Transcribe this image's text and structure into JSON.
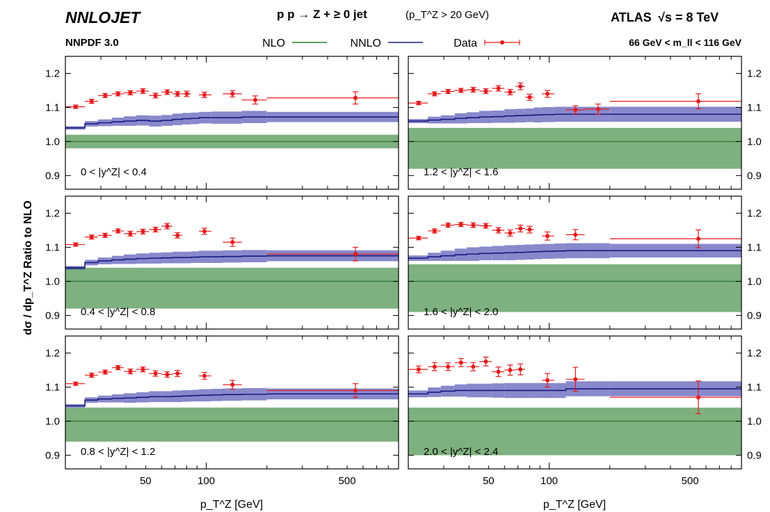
{
  "header": {
    "logo": "NNLOJET",
    "process": "p p → Z + ≥ 0 jet",
    "cut": "(p_T^Z > 20 GeV)",
    "pdf": "NNPDF 3.0",
    "experiment": "ATLAS",
    "energy": "√s = 8 TeV",
    "mass_window": "66 GeV < m_ll < 116 GeV"
  },
  "legend": [
    {
      "label": "NLO",
      "color": "#2e7d32"
    },
    {
      "label": "NNLO",
      "color": "#1a1a80"
    },
    {
      "label": "Data",
      "color": "#e41a1c"
    }
  ],
  "axes": {
    "ylabel": "dσ / dp_T^Z   Ratio to NLO",
    "xlabel": "p_T^Z [GeV]",
    "x_ticks": [
      50,
      100,
      500
    ],
    "y_ticks": [
      0.9,
      1.0,
      1.1,
      1.2
    ]
  },
  "colors": {
    "nlo_fill": "#7fb07f",
    "nlo_line": "#2e7d32",
    "nnlo_fill": "#8888cc",
    "nnlo_overlap": "#3d5a80",
    "nnlo_line": "#1a1a80",
    "data": "#e41a1c"
  },
  "chart_data": {
    "type": "line",
    "x_scale": "log",
    "xlim": [
      20,
      900
    ],
    "ylim": [
      0.86,
      1.25
    ],
    "bin_edges": [
      20,
      25,
      29,
      34,
      39,
      45,
      52,
      60,
      68,
      76,
      84,
      92,
      106,
      121,
      150,
      200,
      900
    ],
    "panels": [
      {
        "label": "0 < |y^Z| < 0.4",
        "nlo_band": [
          0.98,
          1.02
        ],
        "nnlo_center": [
          1.04,
          1.052,
          1.055,
          1.058,
          1.06,
          1.062,
          1.06,
          1.062,
          1.065,
          1.067,
          1.068,
          1.07,
          1.07,
          1.07,
          1.072,
          1.072
        ],
        "nnlo_half_width": [
          0.005,
          0.008,
          0.01,
          0.012,
          0.014,
          0.015,
          0.016,
          0.016,
          0.017,
          0.017,
          0.017,
          0.017,
          0.018,
          0.018,
          0.018,
          0.015
        ],
        "data": [
          {
            "x": 22.5,
            "y": 1.102,
            "err": 0.005,
            "xlo": 20,
            "xhi": 25
          },
          {
            "x": 27,
            "y": 1.118,
            "err": 0.006,
            "xlo": 25,
            "xhi": 29
          },
          {
            "x": 31.5,
            "y": 1.135,
            "err": 0.006,
            "xlo": 29,
            "xhi": 34
          },
          {
            "x": 36.5,
            "y": 1.14,
            "err": 0.006,
            "xlo": 34,
            "xhi": 39
          },
          {
            "x": 42,
            "y": 1.143,
            "err": 0.006,
            "xlo": 39,
            "xhi": 45
          },
          {
            "x": 48.5,
            "y": 1.148,
            "err": 0.007,
            "xlo": 45,
            "xhi": 52
          },
          {
            "x": 56,
            "y": 1.135,
            "err": 0.007,
            "xlo": 52,
            "xhi": 60
          },
          {
            "x": 64,
            "y": 1.145,
            "err": 0.007,
            "xlo": 60,
            "xhi": 68
          },
          {
            "x": 72,
            "y": 1.14,
            "err": 0.007,
            "xlo": 68,
            "xhi": 76
          },
          {
            "x": 80,
            "y": 1.14,
            "err": 0.008,
            "xlo": 76,
            "xhi": 84
          },
          {
            "x": 98,
            "y": 1.137,
            "err": 0.008,
            "xlo": 92,
            "xhi": 106
          },
          {
            "x": 135,
            "y": 1.14,
            "err": 0.009,
            "xlo": 121,
            "xhi": 150
          },
          {
            "x": 175,
            "y": 1.122,
            "err": 0.012,
            "xlo": 150,
            "xhi": 200
          },
          {
            "x": 550,
            "y": 1.128,
            "err": 0.018,
            "xlo": 200,
            "xhi": 900
          }
        ]
      },
      {
        "label": "1.2 < |y^Z| < 1.6",
        "nlo_band": [
          0.92,
          1.04
        ],
        "nnlo_center": [
          1.06,
          1.063,
          1.065,
          1.068,
          1.07,
          1.072,
          1.073,
          1.075,
          1.076,
          1.077,
          1.078,
          1.079,
          1.08,
          1.08,
          1.08,
          1.08
        ],
        "nnlo_half_width": [
          0.006,
          0.01,
          0.012,
          0.015,
          0.016,
          0.018,
          0.018,
          0.02,
          0.02,
          0.02,
          0.022,
          0.022,
          0.022,
          0.022,
          0.022,
          0.022
        ],
        "data": [
          {
            "x": 22.5,
            "y": 1.113,
            "err": 0.005,
            "xlo": 20,
            "xhi": 25
          },
          {
            "x": 27,
            "y": 1.14,
            "err": 0.006,
            "xlo": 25,
            "xhi": 29
          },
          {
            "x": 31.5,
            "y": 1.147,
            "err": 0.006,
            "xlo": 29,
            "xhi": 34
          },
          {
            "x": 36.5,
            "y": 1.15,
            "err": 0.006,
            "xlo": 34,
            "xhi": 39
          },
          {
            "x": 42,
            "y": 1.152,
            "err": 0.007,
            "xlo": 39,
            "xhi": 45
          },
          {
            "x": 48.5,
            "y": 1.148,
            "err": 0.007,
            "xlo": 45,
            "xhi": 52
          },
          {
            "x": 56,
            "y": 1.156,
            "err": 0.008,
            "xlo": 52,
            "xhi": 60
          },
          {
            "x": 64,
            "y": 1.145,
            "err": 0.008,
            "xlo": 60,
            "xhi": 68
          },
          {
            "x": 72,
            "y": 1.162,
            "err": 0.01,
            "xlo": 68,
            "xhi": 76
          },
          {
            "x": 80,
            "y": 1.13,
            "err": 0.009,
            "xlo": 76,
            "xhi": 84
          },
          {
            "x": 98,
            "y": 1.14,
            "err": 0.01,
            "xlo": 92,
            "xhi": 106
          },
          {
            "x": 135,
            "y": 1.093,
            "err": 0.012,
            "xlo": 121,
            "xhi": 150
          },
          {
            "x": 175,
            "y": 1.095,
            "err": 0.015,
            "xlo": 150,
            "xhi": 200
          },
          {
            "x": 550,
            "y": 1.118,
            "err": 0.022,
            "xlo": 200,
            "xhi": 900
          }
        ]
      },
      {
        "label": "0.4 < |y^Z| < 0.8",
        "nlo_band": [
          0.92,
          1.04
        ],
        "nnlo_center": [
          1.04,
          1.055,
          1.06,
          1.063,
          1.065,
          1.067,
          1.068,
          1.069,
          1.07,
          1.07,
          1.071,
          1.072,
          1.072,
          1.073,
          1.074,
          1.075
        ],
        "nnlo_half_width": [
          0.005,
          0.008,
          0.01,
          0.012,
          0.014,
          0.015,
          0.016,
          0.016,
          0.017,
          0.017,
          0.017,
          0.018,
          0.018,
          0.018,
          0.018,
          0.016
        ],
        "data": [
          {
            "x": 22.5,
            "y": 1.108,
            "err": 0.005,
            "xlo": 20,
            "xhi": 25
          },
          {
            "x": 27,
            "y": 1.13,
            "err": 0.006,
            "xlo": 25,
            "xhi": 29
          },
          {
            "x": 31.5,
            "y": 1.135,
            "err": 0.006,
            "xlo": 29,
            "xhi": 34
          },
          {
            "x": 36.5,
            "y": 1.148,
            "err": 0.006,
            "xlo": 34,
            "xhi": 39
          },
          {
            "x": 42,
            "y": 1.14,
            "err": 0.007,
            "xlo": 39,
            "xhi": 45
          },
          {
            "x": 48.5,
            "y": 1.146,
            "err": 0.007,
            "xlo": 45,
            "xhi": 52
          },
          {
            "x": 56,
            "y": 1.152,
            "err": 0.007,
            "xlo": 52,
            "xhi": 60
          },
          {
            "x": 64,
            "y": 1.162,
            "err": 0.008,
            "xlo": 60,
            "xhi": 68
          },
          {
            "x": 72,
            "y": 1.135,
            "err": 0.008,
            "xlo": 68,
            "xhi": 76
          },
          {
            "x": 98,
            "y": 1.147,
            "err": 0.009,
            "xlo": 92,
            "xhi": 106
          },
          {
            "x": 135,
            "y": 1.115,
            "err": 0.012,
            "xlo": 121,
            "xhi": 150
          },
          {
            "x": 550,
            "y": 1.08,
            "err": 0.02,
            "xlo": 200,
            "xhi": 900
          }
        ]
      },
      {
        "label": "1.6 < |y^Z| < 2.0",
        "nlo_band": [
          0.91,
          1.05
        ],
        "nnlo_center": [
          1.068,
          1.072,
          1.075,
          1.078,
          1.08,
          1.082,
          1.083,
          1.084,
          1.085,
          1.086,
          1.087,
          1.088,
          1.089,
          1.09,
          1.09,
          1.09
        ],
        "nnlo_half_width": [
          0.008,
          0.012,
          0.015,
          0.018,
          0.02,
          0.02,
          0.021,
          0.022,
          0.022,
          0.022,
          0.022,
          0.022,
          0.022,
          0.022,
          0.022,
          0.02
        ],
        "data": [
          {
            "x": 22.5,
            "y": 1.127,
            "err": 0.005,
            "xlo": 20,
            "xhi": 25
          },
          {
            "x": 27,
            "y": 1.148,
            "err": 0.006,
            "xlo": 25,
            "xhi": 29
          },
          {
            "x": 31.5,
            "y": 1.165,
            "err": 0.006,
            "xlo": 29,
            "xhi": 34
          },
          {
            "x": 36.5,
            "y": 1.167,
            "err": 0.006,
            "xlo": 34,
            "xhi": 39
          },
          {
            "x": 42,
            "y": 1.165,
            "err": 0.007,
            "xlo": 39,
            "xhi": 45
          },
          {
            "x": 48.5,
            "y": 1.163,
            "err": 0.007,
            "xlo": 45,
            "xhi": 52
          },
          {
            "x": 56,
            "y": 1.15,
            "err": 0.008,
            "xlo": 52,
            "xhi": 60
          },
          {
            "x": 64,
            "y": 1.142,
            "err": 0.009,
            "xlo": 60,
            "xhi": 68
          },
          {
            "x": 72,
            "y": 1.155,
            "err": 0.01,
            "xlo": 68,
            "xhi": 76
          },
          {
            "x": 80,
            "y": 1.152,
            "err": 0.01,
            "xlo": 76,
            "xhi": 84
          },
          {
            "x": 98,
            "y": 1.133,
            "err": 0.012,
            "xlo": 92,
            "xhi": 106
          },
          {
            "x": 135,
            "y": 1.137,
            "err": 0.015,
            "xlo": 121,
            "xhi": 150
          },
          {
            "x": 550,
            "y": 1.125,
            "err": 0.026,
            "xlo": 200,
            "xhi": 900
          }
        ]
      },
      {
        "label": "0.8 < |y^Z| < 1.2",
        "nlo_band": [
          0.94,
          1.04
        ],
        "nnlo_center": [
          1.045,
          1.062,
          1.065,
          1.067,
          1.068,
          1.07,
          1.072,
          1.072,
          1.073,
          1.074,
          1.075,
          1.076,
          1.077,
          1.078,
          1.079,
          1.08
        ],
        "nnlo_half_width": [
          0.005,
          0.008,
          0.01,
          0.012,
          0.014,
          0.015,
          0.016,
          0.016,
          0.017,
          0.017,
          0.017,
          0.018,
          0.018,
          0.018,
          0.018,
          0.016
        ],
        "data": [
          {
            "x": 22.5,
            "y": 1.11,
            "err": 0.005,
            "xlo": 20,
            "xhi": 25
          },
          {
            "x": 27,
            "y": 1.135,
            "err": 0.006,
            "xlo": 25,
            "xhi": 29
          },
          {
            "x": 31.5,
            "y": 1.144,
            "err": 0.006,
            "xlo": 29,
            "xhi": 34
          },
          {
            "x": 36.5,
            "y": 1.157,
            "err": 0.006,
            "xlo": 34,
            "xhi": 39
          },
          {
            "x": 42,
            "y": 1.146,
            "err": 0.007,
            "xlo": 39,
            "xhi": 45
          },
          {
            "x": 48.5,
            "y": 1.152,
            "err": 0.007,
            "xlo": 45,
            "xhi": 52
          },
          {
            "x": 56,
            "y": 1.14,
            "err": 0.008,
            "xlo": 52,
            "xhi": 60
          },
          {
            "x": 64,
            "y": 1.137,
            "err": 0.008,
            "xlo": 60,
            "xhi": 68
          },
          {
            "x": 72,
            "y": 1.14,
            "err": 0.009,
            "xlo": 68,
            "xhi": 76
          },
          {
            "x": 98,
            "y": 1.133,
            "err": 0.01,
            "xlo": 92,
            "xhi": 106
          },
          {
            "x": 135,
            "y": 1.107,
            "err": 0.013,
            "xlo": 121,
            "xhi": 150
          },
          {
            "x": 550,
            "y": 1.09,
            "err": 0.02,
            "xlo": 200,
            "xhi": 900
          }
        ]
      },
      {
        "label": "2.0 < |y^Z| < 2.4",
        "nlo_band": [
          0.9,
          1.04
        ],
        "nnlo_center": [
          1.08,
          1.085,
          1.088,
          1.09,
          1.09,
          1.09,
          1.09,
          1.09,
          1.09,
          1.09,
          1.09,
          1.09,
          1.09,
          1.095,
          1.095,
          1.095
        ],
        "nnlo_half_width": [
          0.01,
          0.014,
          0.016,
          0.018,
          0.02,
          0.02,
          0.021,
          0.022,
          0.022,
          0.022,
          0.022,
          0.022,
          0.022,
          0.022,
          0.022,
          0.022
        ],
        "data": [
          {
            "x": 22.5,
            "y": 1.152,
            "err": 0.01,
            "xlo": 20,
            "xhi": 25
          },
          {
            "x": 27,
            "y": 1.16,
            "err": 0.012,
            "xlo": 25,
            "xhi": 29
          },
          {
            "x": 31.5,
            "y": 1.16,
            "err": 0.011,
            "xlo": 29,
            "xhi": 34
          },
          {
            "x": 36.5,
            "y": 1.172,
            "err": 0.012,
            "xlo": 34,
            "xhi": 39
          },
          {
            "x": 42,
            "y": 1.16,
            "err": 0.012,
            "xlo": 39,
            "xhi": 45
          },
          {
            "x": 48.5,
            "y": 1.175,
            "err": 0.013,
            "xlo": 45,
            "xhi": 52
          },
          {
            "x": 56,
            "y": 1.145,
            "err": 0.014,
            "xlo": 52,
            "xhi": 60
          },
          {
            "x": 64,
            "y": 1.15,
            "err": 0.015,
            "xlo": 60,
            "xhi": 68
          },
          {
            "x": 72,
            "y": 1.152,
            "err": 0.016,
            "xlo": 68,
            "xhi": 76
          },
          {
            "x": 98,
            "y": 1.12,
            "err": 0.02,
            "xlo": 92,
            "xhi": 106
          },
          {
            "x": 135,
            "y": 1.123,
            "err": 0.035,
            "xlo": 121,
            "xhi": 150
          },
          {
            "x": 550,
            "y": 1.07,
            "err": 0.048,
            "xlo": 200,
            "xhi": 900
          }
        ]
      }
    ]
  }
}
